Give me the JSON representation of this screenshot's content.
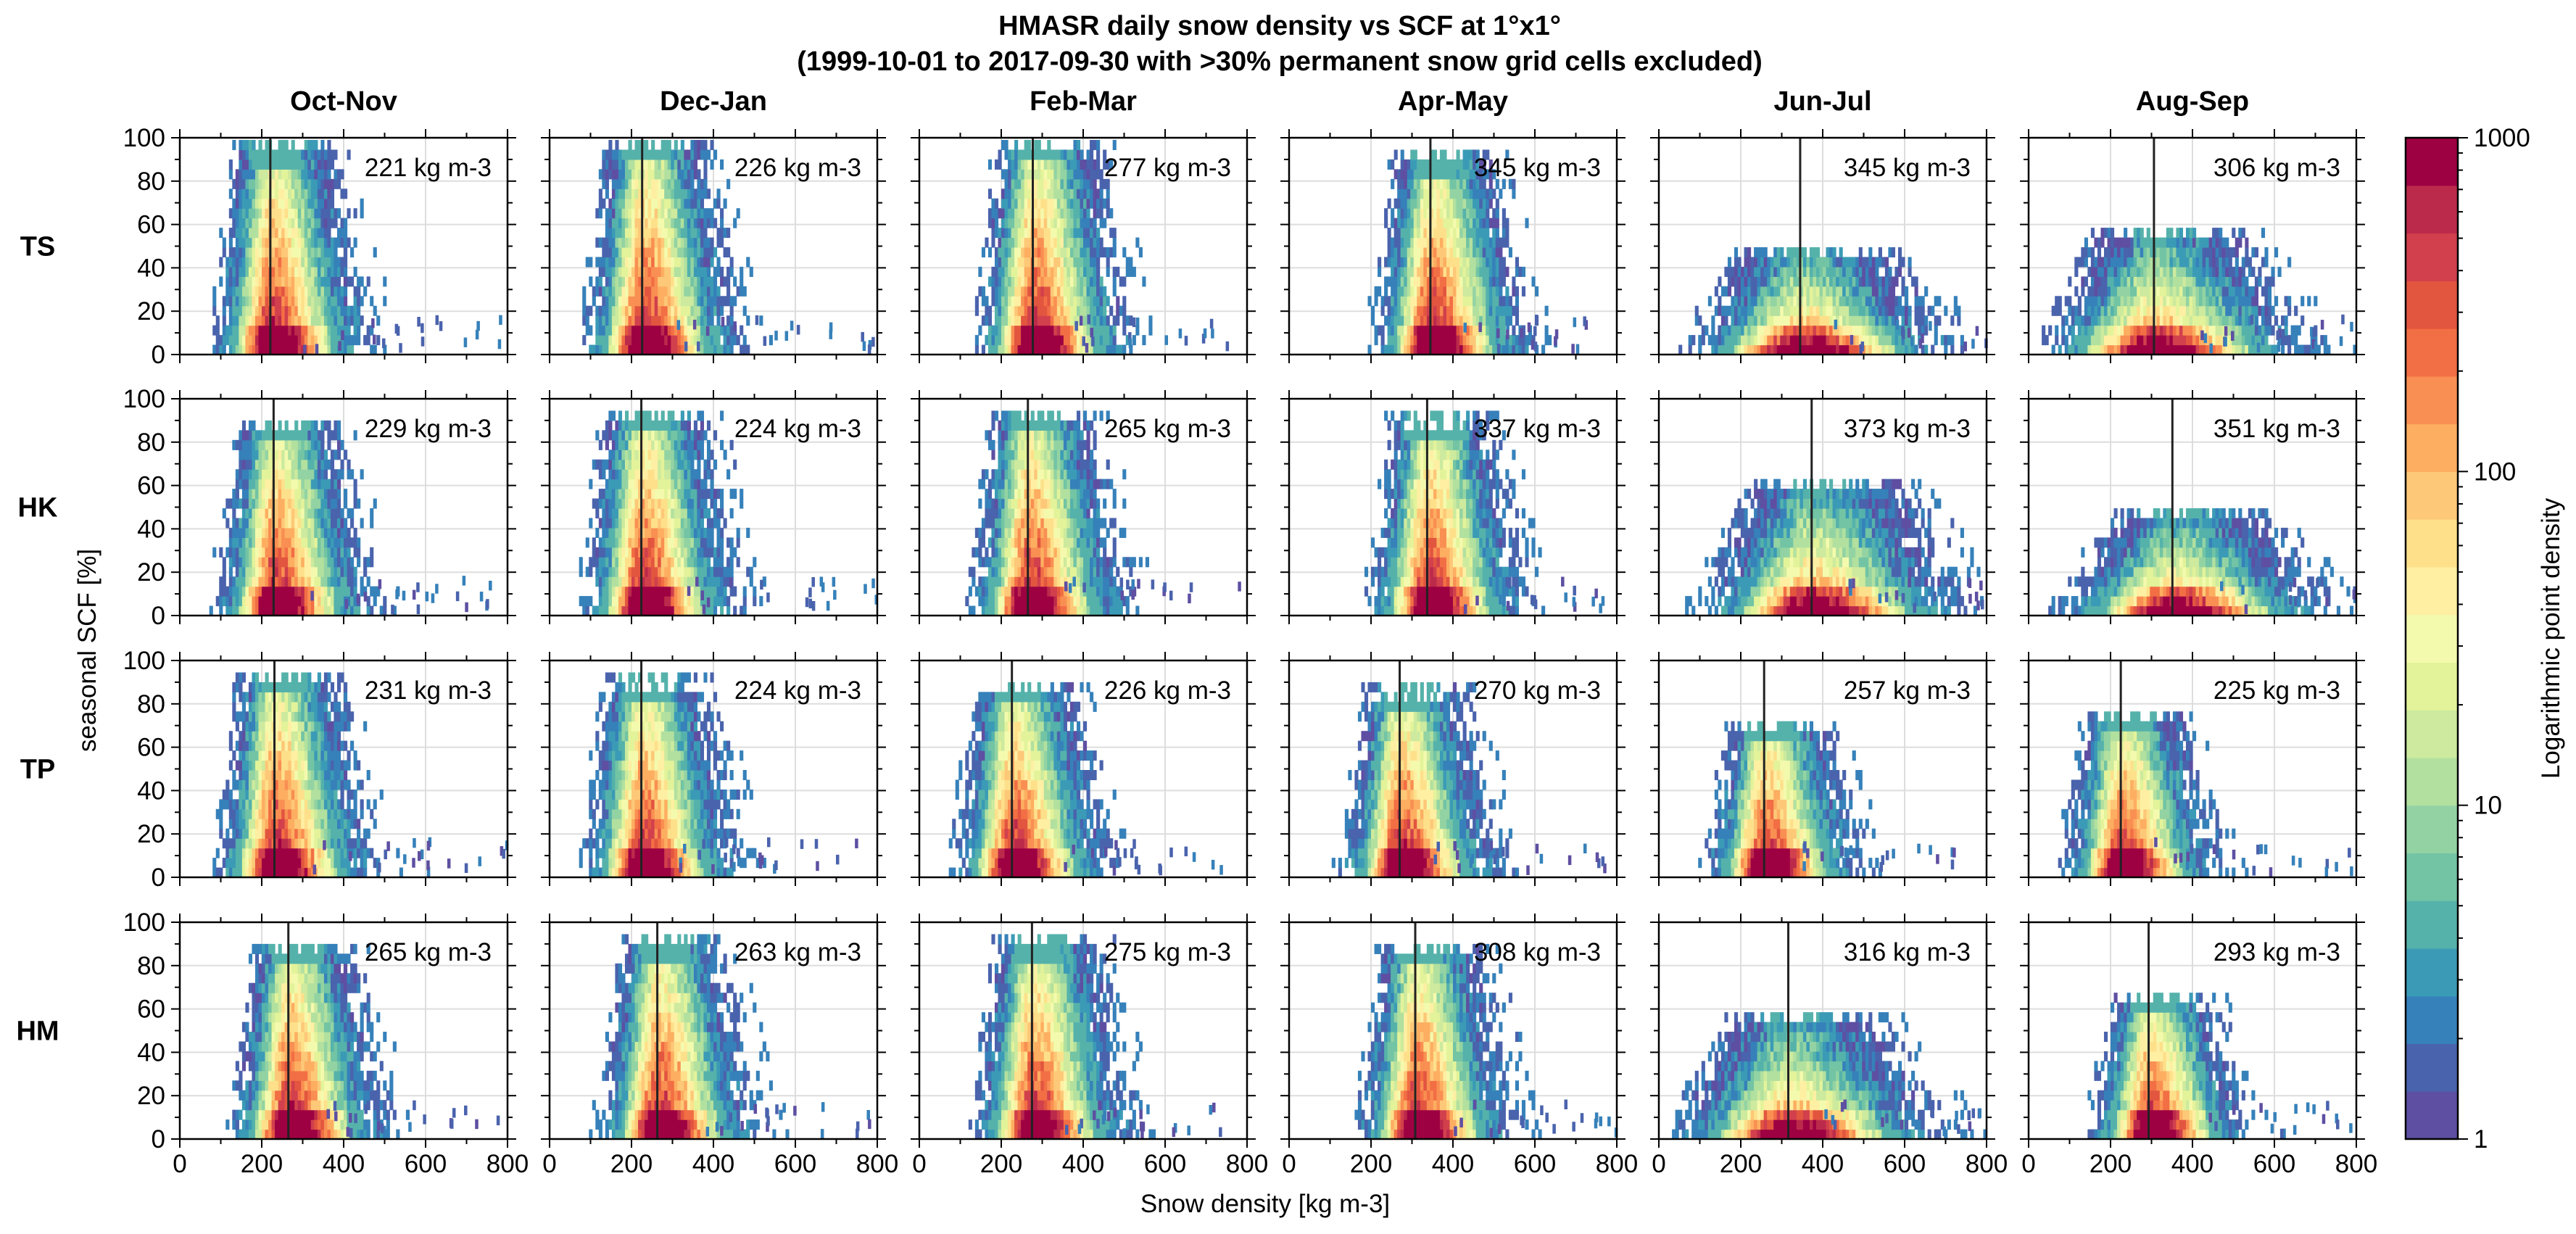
{
  "chart_data": {
    "type": "heatmap",
    "title": "HMASR daily snow density vs SCF at 1°x1°",
    "subtitle": "(1999-10-01 to 2017-09-30 with >30% permanent snow grid cells excluded)",
    "xlabel": "Snow density [kg m-3]",
    "ylabel": "seasonal SCF [%]",
    "xlim": [
      0,
      800
    ],
    "ylim": [
      0,
      100
    ],
    "x_ticks": [
      "0",
      "200",
      "400",
      "600",
      "800"
    ],
    "y_ticks": [
      "0",
      "20",
      "40",
      "60",
      "80",
      "100"
    ],
    "grid": true,
    "columns": [
      "Oct-Nov",
      "Dec-Jan",
      "Feb-Mar",
      "Apr-May",
      "Jun-Jul",
      "Aug-Sep"
    ],
    "rows": [
      "TS",
      "HK",
      "TP",
      "HM"
    ],
    "mean_density_kg_m3": [
      [
        221,
        226,
        277,
        345,
        345,
        306
      ],
      [
        229,
        224,
        265,
        337,
        373,
        351
      ],
      [
        231,
        224,
        226,
        270,
        257,
        225
      ],
      [
        265,
        263,
        275,
        308,
        316,
        293
      ]
    ],
    "annotation_unit": "kg m-3",
    "max_scf_pct": [
      [
        92,
        95,
        95,
        88,
        45,
        52
      ],
      [
        85,
        90,
        90,
        87,
        58,
        42
      ],
      [
        90,
        87,
        84,
        82,
        68,
        70
      ],
      [
        86,
        88,
        88,
        84,
        52,
        62
      ]
    ],
    "colorbar": {
      "label": "Logarithmic point density",
      "scale": "log",
      "range": [
        1,
        1000
      ],
      "ticks": [
        "1",
        "10",
        "100",
        "1000"
      ],
      "colors": [
        "#5e4fa2",
        "#4a63ad",
        "#3681ba",
        "#3b9bb6",
        "#55b2ab",
        "#72c4a4",
        "#93d3a3",
        "#b2e09f",
        "#cdea9e",
        "#e3f39a",
        "#f4faad",
        "#feefa3",
        "#fee08b",
        "#fdc878",
        "#fdae61",
        "#f98f52",
        "#f26e44",
        "#e2553f",
        "#d1404c",
        "#bc2a4b",
        "#9e0142"
      ]
    }
  }
}
